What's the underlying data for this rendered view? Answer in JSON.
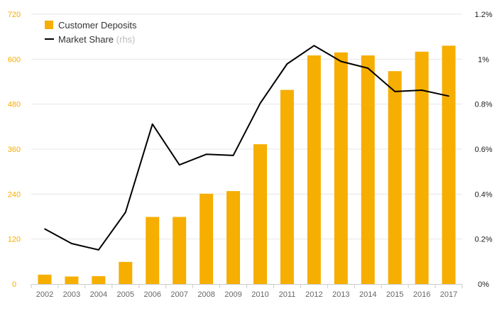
{
  "chart_data": {
    "type": "bar",
    "categories": [
      "2002",
      "2003",
      "2004",
      "2005",
      "2006",
      "2007",
      "2008",
      "2009",
      "2010",
      "2011",
      "2012",
      "2013",
      "2014",
      "2015",
      "2016",
      "2017"
    ],
    "series": [
      {
        "name": "Customer Deposits",
        "type": "bar",
        "axis": "left",
        "color": "#F6AE00",
        "values": [
          25,
          20,
          21,
          59,
          179,
          179,
          241,
          248,
          373,
          518,
          610,
          618,
          610,
          568,
          620,
          636
        ]
      },
      {
        "name": "Market Share",
        "name_suffix": "(rhs)",
        "type": "line",
        "axis": "right",
        "color": "#000000",
        "values": [
          0.245,
          0.18,
          0.152,
          0.319,
          0.711,
          0.53,
          0.577,
          0.572,
          0.804,
          0.979,
          1.06,
          0.99,
          0.96,
          0.856,
          0.862,
          0.836
        ]
      }
    ],
    "y_left": {
      "ticks": [
        0,
        120,
        240,
        360,
        480,
        600,
        720
      ],
      "ylim": [
        0,
        720
      ],
      "tick_color": "#F6AE00"
    },
    "y_right": {
      "ticks": [
        0,
        0.2,
        0.4,
        0.6,
        0.8,
        1.0,
        1.2
      ],
      "tick_labels": [
        "0%",
        "0.2%",
        "0.4%",
        "0.6%",
        "0.8%",
        "1%",
        "1.2%"
      ],
      "ylim": [
        0,
        1.2
      ]
    },
    "grid": true,
    "legend": "top-left"
  }
}
